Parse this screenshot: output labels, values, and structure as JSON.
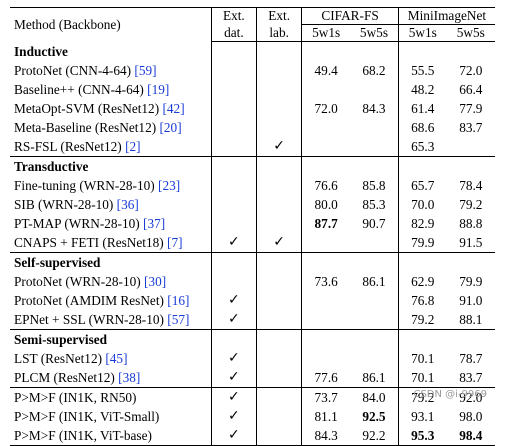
{
  "header": {
    "method": "Method (Backbone)",
    "ext_dat": [
      "Ext.",
      "dat."
    ],
    "ext_lab": [
      "Ext.",
      "lab."
    ],
    "datasets": [
      "CIFAR-FS",
      "MiniImageNet"
    ],
    "shots": [
      "5w1s",
      "5w5s",
      "5w1s",
      "5w5s"
    ]
  },
  "rows": [
    {
      "type": "section",
      "label": "Inductive"
    },
    {
      "type": "row",
      "method": "ProtoNet (CNN-4-64) ",
      "cite": "[59]",
      "dat": "",
      "lab": "",
      "v": [
        "49.4",
        "68.2",
        "55.5",
        "72.0"
      ]
    },
    {
      "type": "row",
      "method": "Baseline++ (CNN-4-64) ",
      "cite": "[19]",
      "dat": "",
      "lab": "",
      "v": [
        "",
        "",
        "48.2",
        "66.4"
      ]
    },
    {
      "type": "row",
      "method": "MetaOpt-SVM (ResNet12) ",
      "cite": "[42]",
      "dat": "",
      "lab": "",
      "v": [
        "72.0",
        "84.3",
        "61.4",
        "77.9"
      ]
    },
    {
      "type": "row",
      "method": "Meta-Baseline (ResNet12) ",
      "cite": "[20]",
      "dat": "",
      "lab": "",
      "v": [
        "",
        "",
        "68.6",
        "83.7"
      ]
    },
    {
      "type": "row",
      "method": "RS-FSL (ResNet12) ",
      "cite": "[2]",
      "dat": "",
      "lab": "✓",
      "v": [
        "",
        "",
        "65.3",
        ""
      ]
    },
    {
      "type": "section",
      "label": "Transductive"
    },
    {
      "type": "row",
      "method": "Fine-tuning (WRN-28-10) ",
      "cite": "[23]",
      "dat": "",
      "lab": "",
      "v": [
        "76.6",
        "85.8",
        "65.7",
        "78.4"
      ]
    },
    {
      "type": "row",
      "method": "SIB (WRN-28-10) ",
      "cite": "[36]",
      "dat": "",
      "lab": "",
      "v": [
        "80.0",
        "85.3",
        "70.0",
        "79.2"
      ]
    },
    {
      "type": "row",
      "method": "PT-MAP (WRN-28-10) ",
      "cite": "[37]",
      "dat": "",
      "lab": "",
      "v": [
        "87.7",
        "90.7",
        "82.9",
        "88.8"
      ],
      "bold": [
        0
      ]
    },
    {
      "type": "row",
      "method": "CNAPS + FETI (ResNet18) ",
      "cite": "[7]",
      "dat": "✓",
      "lab": "✓",
      "v": [
        "",
        "",
        "79.9",
        "91.5"
      ]
    },
    {
      "type": "section",
      "label": "Self-supervised"
    },
    {
      "type": "row",
      "method": "ProtoNet (WRN-28-10) ",
      "cite": "[30]",
      "dat": "",
      "lab": "",
      "v": [
        "73.6",
        "86.1",
        "62.9",
        "79.9"
      ]
    },
    {
      "type": "row",
      "method": "ProtoNet (AMDIM ResNet) ",
      "cite": "[16]",
      "dat": "✓",
      "lab": "",
      "v": [
        "",
        "",
        "76.8",
        "91.0"
      ]
    },
    {
      "type": "row",
      "method": "EPNet + SSL (WRN-28-10) ",
      "cite": "[57]",
      "dat": "✓",
      "lab": "",
      "v": [
        "",
        "",
        "79.2",
        "88.1"
      ]
    },
    {
      "type": "section",
      "label": "Semi-supervised"
    },
    {
      "type": "row",
      "method": "LST (ResNet12) ",
      "cite": "[45]",
      "dat": "✓",
      "lab": "",
      "v": [
        "",
        "",
        "70.1",
        "78.7"
      ]
    },
    {
      "type": "row",
      "method": "PLCM (ResNet12) ",
      "cite": "[38]",
      "dat": "✓",
      "lab": "",
      "v": [
        "77.6",
        "86.1",
        "70.1",
        "83.7"
      ]
    },
    {
      "type": "ours",
      "method": "P>M>F (IN1K, RN50)",
      "cite": "",
      "dat": "✓",
      "lab": "",
      "v": [
        "73.7",
        "84.0",
        "79.2",
        "92.0"
      ]
    },
    {
      "type": "ours",
      "method": "P>M>F (IN1K, ViT-Small)",
      "cite": "",
      "dat": "✓",
      "lab": "",
      "v": [
        "81.1",
        "92.5",
        "93.1",
        "98.0"
      ],
      "bold": [
        1
      ]
    },
    {
      "type": "ours",
      "method": "P>M>F (IN1K, ViT-base)",
      "cite": "",
      "dat": "✓",
      "lab": "",
      "v": [
        "84.3",
        "92.2",
        "95.3",
        "98.4"
      ],
      "bold": [
        2,
        3
      ]
    }
  ],
  "watermark": "CSDN @i-9969"
}
